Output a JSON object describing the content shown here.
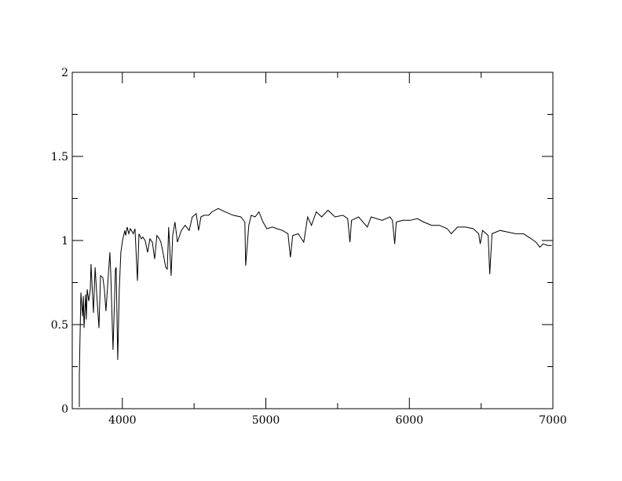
{
  "chart_data": {
    "type": "line",
    "title": "",
    "xlabel": "",
    "ylabel": "",
    "xlim": [
      3651,
      7000
    ],
    "ylim": [
      0,
      2
    ],
    "xticks": [
      "4000",
      "5000",
      "6000",
      "7000"
    ],
    "xtick_values": [
      4000,
      5000,
      6000,
      7000
    ],
    "x_minor_step": 500,
    "yticks": [
      "0",
      "0.5",
      "1",
      "1.5",
      "2"
    ],
    "ytick_values": [
      0,
      0.5,
      1,
      1.5,
      2
    ],
    "y_minor_step": 0.25,
    "grid": false,
    "line_color": "#000000",
    "series": [
      {
        "points": [
          [
            3700,
            0.01
          ],
          [
            3700,
            0.2
          ],
          [
            3711,
            0.69
          ],
          [
            3722,
            0.55
          ],
          [
            3728,
            0.67
          ],
          [
            3733,
            0.48
          ],
          [
            3744,
            0.68
          ],
          [
            3749,
            0.53
          ],
          [
            3755,
            0.71
          ],
          [
            3766,
            0.64
          ],
          [
            3777,
            0.71
          ],
          [
            3782,
            0.86
          ],
          [
            3799,
            0.57
          ],
          [
            3810,
            0.84
          ],
          [
            3820,
            0.7
          ],
          [
            3837,
            0.48
          ],
          [
            3848,
            0.79
          ],
          [
            3864,
            0.78
          ],
          [
            3875,
            0.71
          ],
          [
            3886,
            0.58
          ],
          [
            3902,
            0.79
          ],
          [
            3913,
            0.93
          ],
          [
            3919,
            0.81
          ],
          [
            3935,
            0.35
          ],
          [
            3952,
            0.83
          ],
          [
            3957,
            0.84
          ],
          [
            3968,
            0.29
          ],
          [
            3979,
            0.71
          ],
          [
            3990,
            0.93
          ],
          [
            4001,
            1.0
          ],
          [
            4017,
            1.06
          ],
          [
            4023,
            1.03
          ],
          [
            4034,
            1.08
          ],
          [
            4045,
            1.04
          ],
          [
            4056,
            1.07
          ],
          [
            4077,
            1.04
          ],
          [
            4088,
            1.07
          ],
          [
            4105,
            0.76
          ],
          [
            4116,
            1.04
          ],
          [
            4132,
            1.01
          ],
          [
            4143,
            1.02
          ],
          [
            4159,
            1.0
          ],
          [
            4176,
            0.93
          ],
          [
            4192,
            1.01
          ],
          [
            4209,
            0.99
          ],
          [
            4225,
            0.89
          ],
          [
            4241,
            1.03
          ],
          [
            4258,
            1.01
          ],
          [
            4269,
            0.99
          ],
          [
            4285,
            0.92
          ],
          [
            4302,
            0.84
          ],
          [
            4313,
            0.83
          ],
          [
            4323,
            1.08
          ],
          [
            4340,
            0.79
          ],
          [
            4351,
            1.03
          ],
          [
            4367,
            1.11
          ],
          [
            4384,
            0.99
          ],
          [
            4411,
            1.06
          ],
          [
            4438,
            1.09
          ],
          [
            4466,
            1.06
          ],
          [
            4487,
            1.14
          ],
          [
            4515,
            1.16
          ],
          [
            4531,
            1.06
          ],
          [
            4548,
            1.14
          ],
          [
            4569,
            1.15
          ],
          [
            4602,
            1.15
          ],
          [
            4624,
            1.17
          ],
          [
            4668,
            1.19
          ],
          [
            4717,
            1.17
          ],
          [
            4772,
            1.15
          ],
          [
            4826,
            1.14
          ],
          [
            4854,
            1.11
          ],
          [
            4859,
            0.85
          ],
          [
            4881,
            1.09
          ],
          [
            4898,
            1.15
          ],
          [
            4925,
            1.14
          ],
          [
            4952,
            1.17
          ],
          [
            4980,
            1.11
          ],
          [
            5007,
            1.07
          ],
          [
            5045,
            1.08
          ],
          [
            5078,
            1.07
          ],
          [
            5116,
            1.06
          ],
          [
            5154,
            1.04
          ],
          [
            5171,
            0.9
          ],
          [
            5187,
            1.03
          ],
          [
            5226,
            1.04
          ],
          [
            5264,
            0.99
          ],
          [
            5291,
            1.14
          ],
          [
            5318,
            1.09
          ],
          [
            5351,
            1.17
          ],
          [
            5389,
            1.14
          ],
          [
            5433,
            1.18
          ],
          [
            5482,
            1.14
          ],
          [
            5537,
            1.15
          ],
          [
            5570,
            1.13
          ],
          [
            5586,
            0.99
          ],
          [
            5597,
            1.12
          ],
          [
            5646,
            1.14
          ],
          [
            5707,
            1.08
          ],
          [
            5734,
            1.14
          ],
          [
            5810,
            1.12
          ],
          [
            5865,
            1.14
          ],
          [
            5882,
            1.12
          ],
          [
            5898,
            0.98
          ],
          [
            5909,
            1.11
          ],
          [
            5953,
            1.12
          ],
          [
            6007,
            1.12
          ],
          [
            6056,
            1.13
          ],
          [
            6100,
            1.11
          ],
          [
            6155,
            1.09
          ],
          [
            6210,
            1.09
          ],
          [
            6264,
            1.07
          ],
          [
            6292,
            1.04
          ],
          [
            6335,
            1.08
          ],
          [
            6390,
            1.08
          ],
          [
            6445,
            1.07
          ],
          [
            6483,
            1.04
          ],
          [
            6494,
            0.98
          ],
          [
            6510,
            1.06
          ],
          [
            6549,
            1.03
          ],
          [
            6560,
            0.8
          ],
          [
            6576,
            1.04
          ],
          [
            6631,
            1.06
          ],
          [
            6685,
            1.05
          ],
          [
            6740,
            1.04
          ],
          [
            6795,
            1.04
          ],
          [
            6850,
            1.01
          ],
          [
            6882,
            0.99
          ],
          [
            6909,
            0.96
          ],
          [
            6931,
            0.98
          ],
          [
            6964,
            0.97
          ],
          [
            6991,
            0.97
          ]
        ]
      }
    ]
  }
}
